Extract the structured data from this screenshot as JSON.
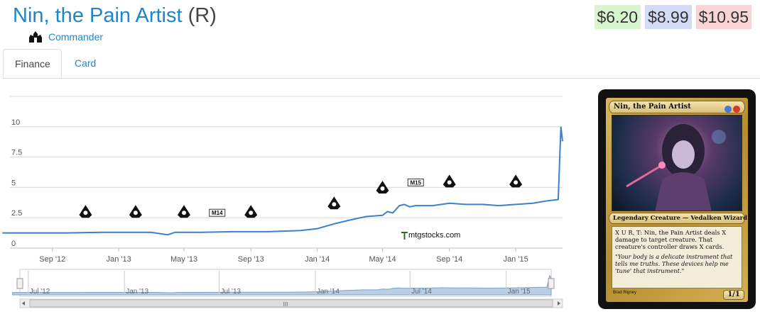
{
  "header": {
    "card_name": "Nin, the Pain Artist",
    "rarity": "(R)",
    "set_name": "Commander",
    "set_icon": "commander-set-icon"
  },
  "prices": {
    "low": "$6.20",
    "avg": "$8.99",
    "high": "$10.95",
    "low_color": "#d9f5d0",
    "avg_color": "#d3dcf7",
    "high_color": "#f9d4d4"
  },
  "tabs": [
    {
      "label": "Finance",
      "active": true
    },
    {
      "label": "Card",
      "active": false
    }
  ],
  "chart_data": {
    "type": "line",
    "title": "",
    "xlabel": "",
    "ylabel": "",
    "ylim": [
      0,
      12.5
    ],
    "yticks": [
      "0",
      "2.5",
      "5",
      "7.5",
      "10"
    ],
    "grid": true,
    "line_color": "#3b82c7",
    "x_tick_labels": [
      "Sep '12",
      "Jan '13",
      "May '13",
      "Sep '13",
      "Jan '14",
      "May '14",
      "Sep '14",
      "Jan '15"
    ],
    "watermark": "mtgstocks.com",
    "series": [
      {
        "points": [
          [
            "2012-06",
            1.25
          ],
          [
            "2012-08",
            1.25
          ],
          [
            "2012-10",
            1.25
          ],
          [
            "2012-12",
            1.3
          ],
          [
            "2013-02",
            1.3
          ],
          [
            "2013-03",
            1.3
          ],
          [
            "2013-04",
            1.1
          ],
          [
            "2013-04-15",
            1.3
          ],
          [
            "2013-06",
            1.3
          ],
          [
            "2013-08",
            1.35
          ],
          [
            "2013-10",
            1.35
          ],
          [
            "2013-12",
            1.45
          ],
          [
            "2014-01",
            1.6
          ],
          [
            "2014-02",
            2.0
          ],
          [
            "2014-03",
            2.3
          ],
          [
            "2014-04",
            2.6
          ],
          [
            "2014-05",
            2.7
          ],
          [
            "2014-05-10",
            3.0
          ],
          [
            "2014-05-20",
            2.9
          ],
          [
            "2014-06-01",
            3.5
          ],
          [
            "2014-06-10",
            3.6
          ],
          [
            "2014-06-20",
            3.4
          ],
          [
            "2014-07",
            3.5
          ],
          [
            "2014-08",
            3.5
          ],
          [
            "2014-09",
            3.7
          ],
          [
            "2014-10",
            3.6
          ],
          [
            "2014-11",
            3.6
          ],
          [
            "2014-12",
            3.5
          ],
          [
            "2015-01",
            3.6
          ],
          [
            "2015-02",
            3.7
          ],
          [
            "2015-03",
            3.9
          ],
          [
            "2015-03-20",
            4.0
          ],
          [
            "2015-03-25",
            10.0
          ],
          [
            "2015-03-28",
            8.8
          ]
        ]
      }
    ],
    "set_release_markers": [
      {
        "date": "2012-11",
        "y": 2.5,
        "icon": "return-to-ravnica-set-icon"
      },
      {
        "date": "2013-02",
        "y": 2.5,
        "icon": "gatecrash-set-icon"
      },
      {
        "date": "2013-05",
        "y": 2.5,
        "icon": "dragons-maze-set-icon"
      },
      {
        "date": "2013-07",
        "y": 2.5,
        "label": "M14"
      },
      {
        "date": "2013-09",
        "y": 2.5,
        "icon": "theros-set-icon"
      },
      {
        "date": "2014-02",
        "y": 3.2,
        "icon": "born-of-the-gods-set-icon"
      },
      {
        "date": "2014-05",
        "y": 4.5,
        "icon": "journey-into-nyx-set-icon"
      },
      {
        "date": "2014-07",
        "y": 5.0,
        "label": "M15"
      },
      {
        "date": "2014-09",
        "y": 5.0,
        "icon": "khans-of-tarkir-set-icon"
      },
      {
        "date": "2015-01",
        "y": 5.0,
        "icon": "fate-reforged-set-icon"
      }
    ],
    "navigator": {
      "tick_labels": [
        "Jul '12",
        "Jan '13",
        "Jul '13",
        "Jan '14",
        "Jul '14",
        "Jan '15"
      ],
      "scrollbar_grip": "III"
    }
  },
  "card": {
    "name": "Nin, the Pain Artist",
    "mana_colors": [
      "#4a7ad0",
      "#d23a2a"
    ],
    "type_line": "Legendary Creature — Vedalken Wizard",
    "rules_text": "X U R, T: Nin, the Pain Artist deals X damage to target creature. That creature's controller draws X cards.",
    "flavor_text": "\"Your body is a delicate instrument that tells me truths. These devices help me 'tune' that instrument.\"",
    "artist": "Brad Rigney",
    "pt": "1/1"
  }
}
